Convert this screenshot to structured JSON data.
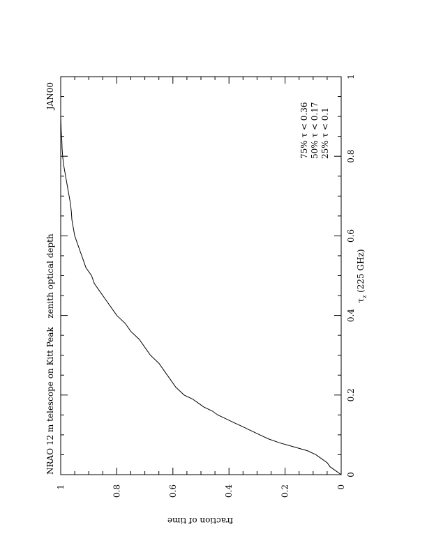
{
  "chart_data": {
    "type": "line",
    "title": "NRAO 12 m telescope on Kitt Peak",
    "subtitle": "zenith optical depth",
    "tag": "JAN00",
    "xlabel": "τz (225 GHz)",
    "xlabel_main": "τ",
    "xlabel_sub": "z",
    "xlabel_rest": " (225 GHz)",
    "ylabel": "fraction of time",
    "xlim": [
      0,
      1
    ],
    "ylim": [
      0,
      1
    ],
    "x_tick_labels": [
      "0",
      "0.2",
      "0.4",
      "0.6",
      "0.8",
      "1"
    ],
    "y_tick_labels": [
      "0",
      "0.2",
      "0.4",
      "0.6",
      "0.8",
      "1"
    ],
    "grid": false,
    "annotations": [
      "75% τ < 0.36",
      "50% τ < 0.17",
      "25% τ < 0.1"
    ],
    "series": [
      {
        "x": [
          0.0,
          0.01,
          0.02,
          0.03,
          0.04,
          0.05,
          0.06,
          0.07,
          0.08,
          0.09,
          0.1,
          0.11,
          0.12,
          0.13,
          0.14,
          0.15,
          0.16,
          0.17,
          0.18,
          0.19,
          0.2,
          0.22,
          0.24,
          0.26,
          0.28,
          0.3,
          0.32,
          0.34,
          0.36,
          0.38,
          0.4,
          0.42,
          0.44,
          0.46,
          0.48,
          0.5,
          0.52,
          0.54,
          0.56,
          0.58,
          0.6,
          0.62,
          0.64,
          0.66,
          0.68,
          0.7,
          0.72,
          0.74,
          0.76,
          0.78,
          0.8,
          0.82,
          0.84,
          0.86,
          0.88,
          0.9,
          0.95,
          1.0
        ],
        "y": [
          0.0,
          0.02,
          0.04,
          0.05,
          0.07,
          0.09,
          0.12,
          0.17,
          0.22,
          0.26,
          0.29,
          0.32,
          0.35,
          0.38,
          0.41,
          0.44,
          0.46,
          0.49,
          0.51,
          0.53,
          0.56,
          0.59,
          0.61,
          0.63,
          0.65,
          0.68,
          0.7,
          0.72,
          0.75,
          0.77,
          0.8,
          0.82,
          0.84,
          0.86,
          0.88,
          0.89,
          0.91,
          0.92,
          0.93,
          0.94,
          0.95,
          0.955,
          0.96,
          0.962,
          0.965,
          0.97,
          0.975,
          0.98,
          0.985,
          0.99,
          0.993,
          0.995,
          0.996,
          0.998,
          0.999,
          1.0,
          1.0,
          1.0
        ]
      }
    ]
  }
}
